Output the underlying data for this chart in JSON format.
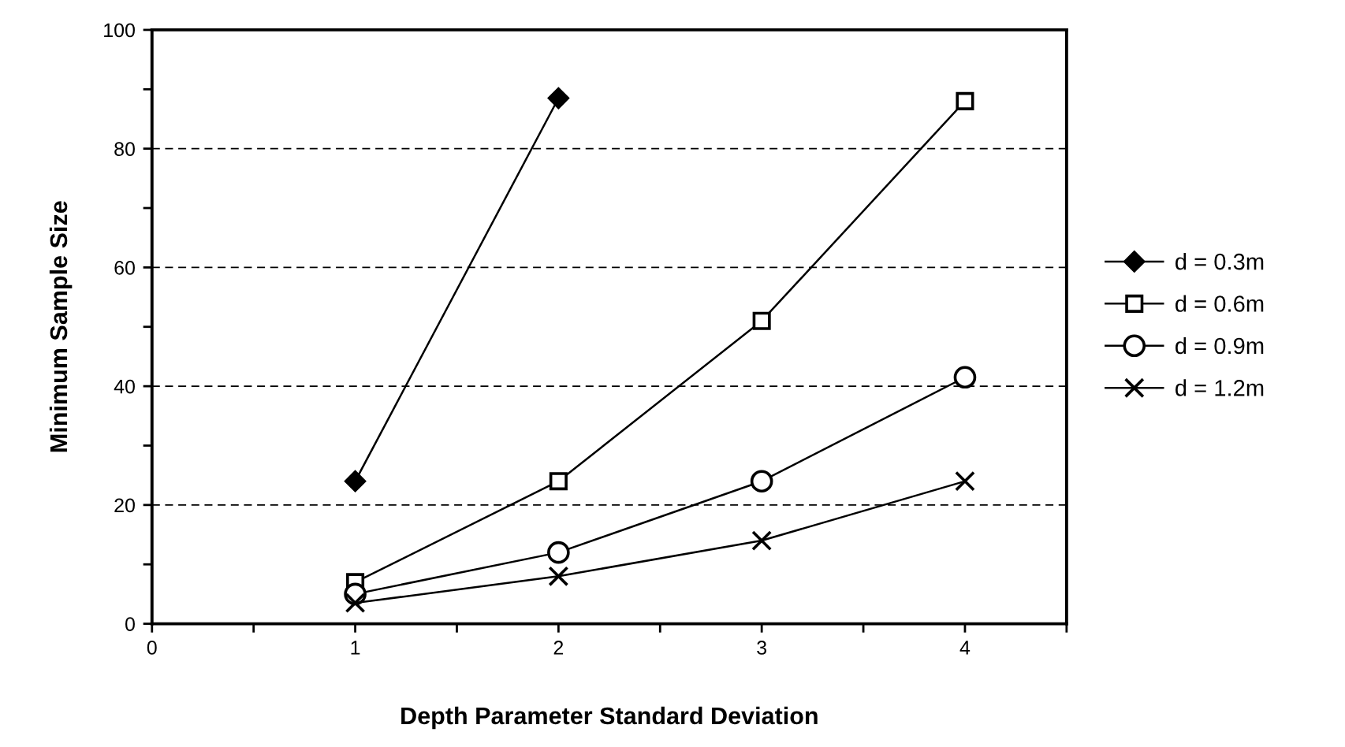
{
  "chart_data": {
    "type": "line",
    "xlabel": "Depth Parameter Standard Deviation",
    "ylabel": "Minimum Sample Size",
    "x": [
      1,
      2,
      3,
      4
    ],
    "series": [
      {
        "name": "d = 0.3m",
        "color": "#000000",
        "marker": "diamond",
        "values": [
          24,
          88.5,
          null,
          null
        ]
      },
      {
        "name": "d = 0.6m",
        "color": "#000000",
        "marker": "square",
        "values": [
          7,
          24,
          51,
          88
        ]
      },
      {
        "name": "d = 0.9m",
        "color": "#000000",
        "marker": "circle",
        "values": [
          5,
          12,
          24,
          41.5
        ]
      },
      {
        "name": "d = 1.2m",
        "color": "#000000",
        "marker": "cross",
        "values": [
          3.5,
          8,
          14,
          24
        ]
      }
    ],
    "xlim": [
      0,
      4.5
    ],
    "xticks": [
      0,
      {
        "value": 0.5,
        "label": null
      },
      1,
      {
        "value": 1.5,
        "label": null
      },
      2,
      {
        "value": 2.5,
        "label": null
      },
      3,
      {
        "value": 3.5,
        "label": null
      },
      4,
      {
        "value": 4.5,
        "label": null
      }
    ],
    "ylim": [
      0,
      100
    ],
    "yticks": [
      0,
      {
        "value": 10,
        "label": null
      },
      20,
      {
        "value": 30,
        "label": null
      },
      40,
      {
        "value": 50,
        "label": null
      },
      60,
      {
        "value": 70,
        "label": null
      },
      80,
      {
        "value": 90,
        "label": null
      },
      100
    ],
    "grid": "y",
    "legend": "right",
    "line_style": "solid"
  }
}
